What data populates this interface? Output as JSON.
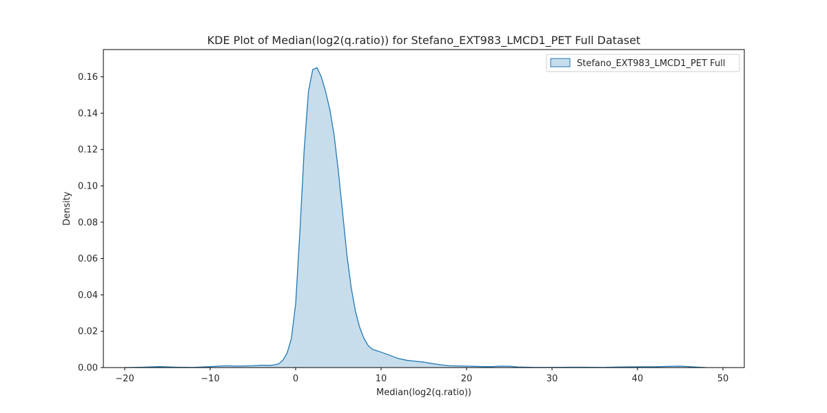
{
  "chart_data": {
    "type": "area",
    "title": "KDE Plot of Median(log2(q.ratio)) for Stefano_EXT983_LMCD1_PET Full Dataset",
    "xlabel": "Median(log2(q.ratio))",
    "ylabel": "Density",
    "xlim": [
      -22.5,
      52.5
    ],
    "ylim": [
      0,
      0.175
    ],
    "xticks": [
      -20,
      -10,
      0,
      10,
      20,
      30,
      40,
      50
    ],
    "yticks": [
      0.0,
      0.02,
      0.04,
      0.06,
      0.08,
      0.1,
      0.12,
      0.14,
      0.16
    ],
    "grid": false,
    "legend_position": "top-right",
    "series": [
      {
        "name": "Stefano_EXT983_LMCD1_PET Full",
        "color": "#1f77b4",
        "fill_color": "#1f77b4",
        "x": [
          -20,
          -18,
          -16,
          -14,
          -12,
          -10,
          -9,
          -8,
          -7,
          -6,
          -5,
          -4,
          -3,
          -2.5,
          -2,
          -1.5,
          -1,
          -0.5,
          0,
          0.5,
          1,
          1.5,
          2,
          2.5,
          3,
          3.5,
          4,
          4.5,
          5,
          5.5,
          6,
          6.5,
          7,
          7.5,
          8,
          8.5,
          9,
          10,
          11,
          12,
          13,
          14,
          15,
          16,
          17,
          18,
          20,
          22,
          23,
          24,
          25,
          26,
          28,
          30,
          32,
          34,
          36,
          38,
          40,
          42,
          44,
          45,
          46,
          48
        ],
        "y": [
          0.0,
          0.0002,
          0.0005,
          0.0002,
          0.0001,
          0.0005,
          0.0008,
          0.001,
          0.0008,
          0.0009,
          0.001,
          0.0013,
          0.0012,
          0.0015,
          0.002,
          0.004,
          0.008,
          0.016,
          0.035,
          0.075,
          0.12,
          0.152,
          0.164,
          0.165,
          0.16,
          0.152,
          0.142,
          0.128,
          0.108,
          0.085,
          0.062,
          0.044,
          0.031,
          0.022,
          0.016,
          0.012,
          0.01,
          0.0085,
          0.0068,
          0.005,
          0.004,
          0.0035,
          0.003,
          0.0022,
          0.0015,
          0.001,
          0.0008,
          0.0005,
          0.0005,
          0.0008,
          0.0007,
          0.0003,
          0.0001,
          0.0001,
          0.0002,
          0.0002,
          0.0001,
          0.0003,
          0.0004,
          0.0004,
          0.0007,
          0.0008,
          0.0005,
          0.0
        ]
      }
    ]
  }
}
